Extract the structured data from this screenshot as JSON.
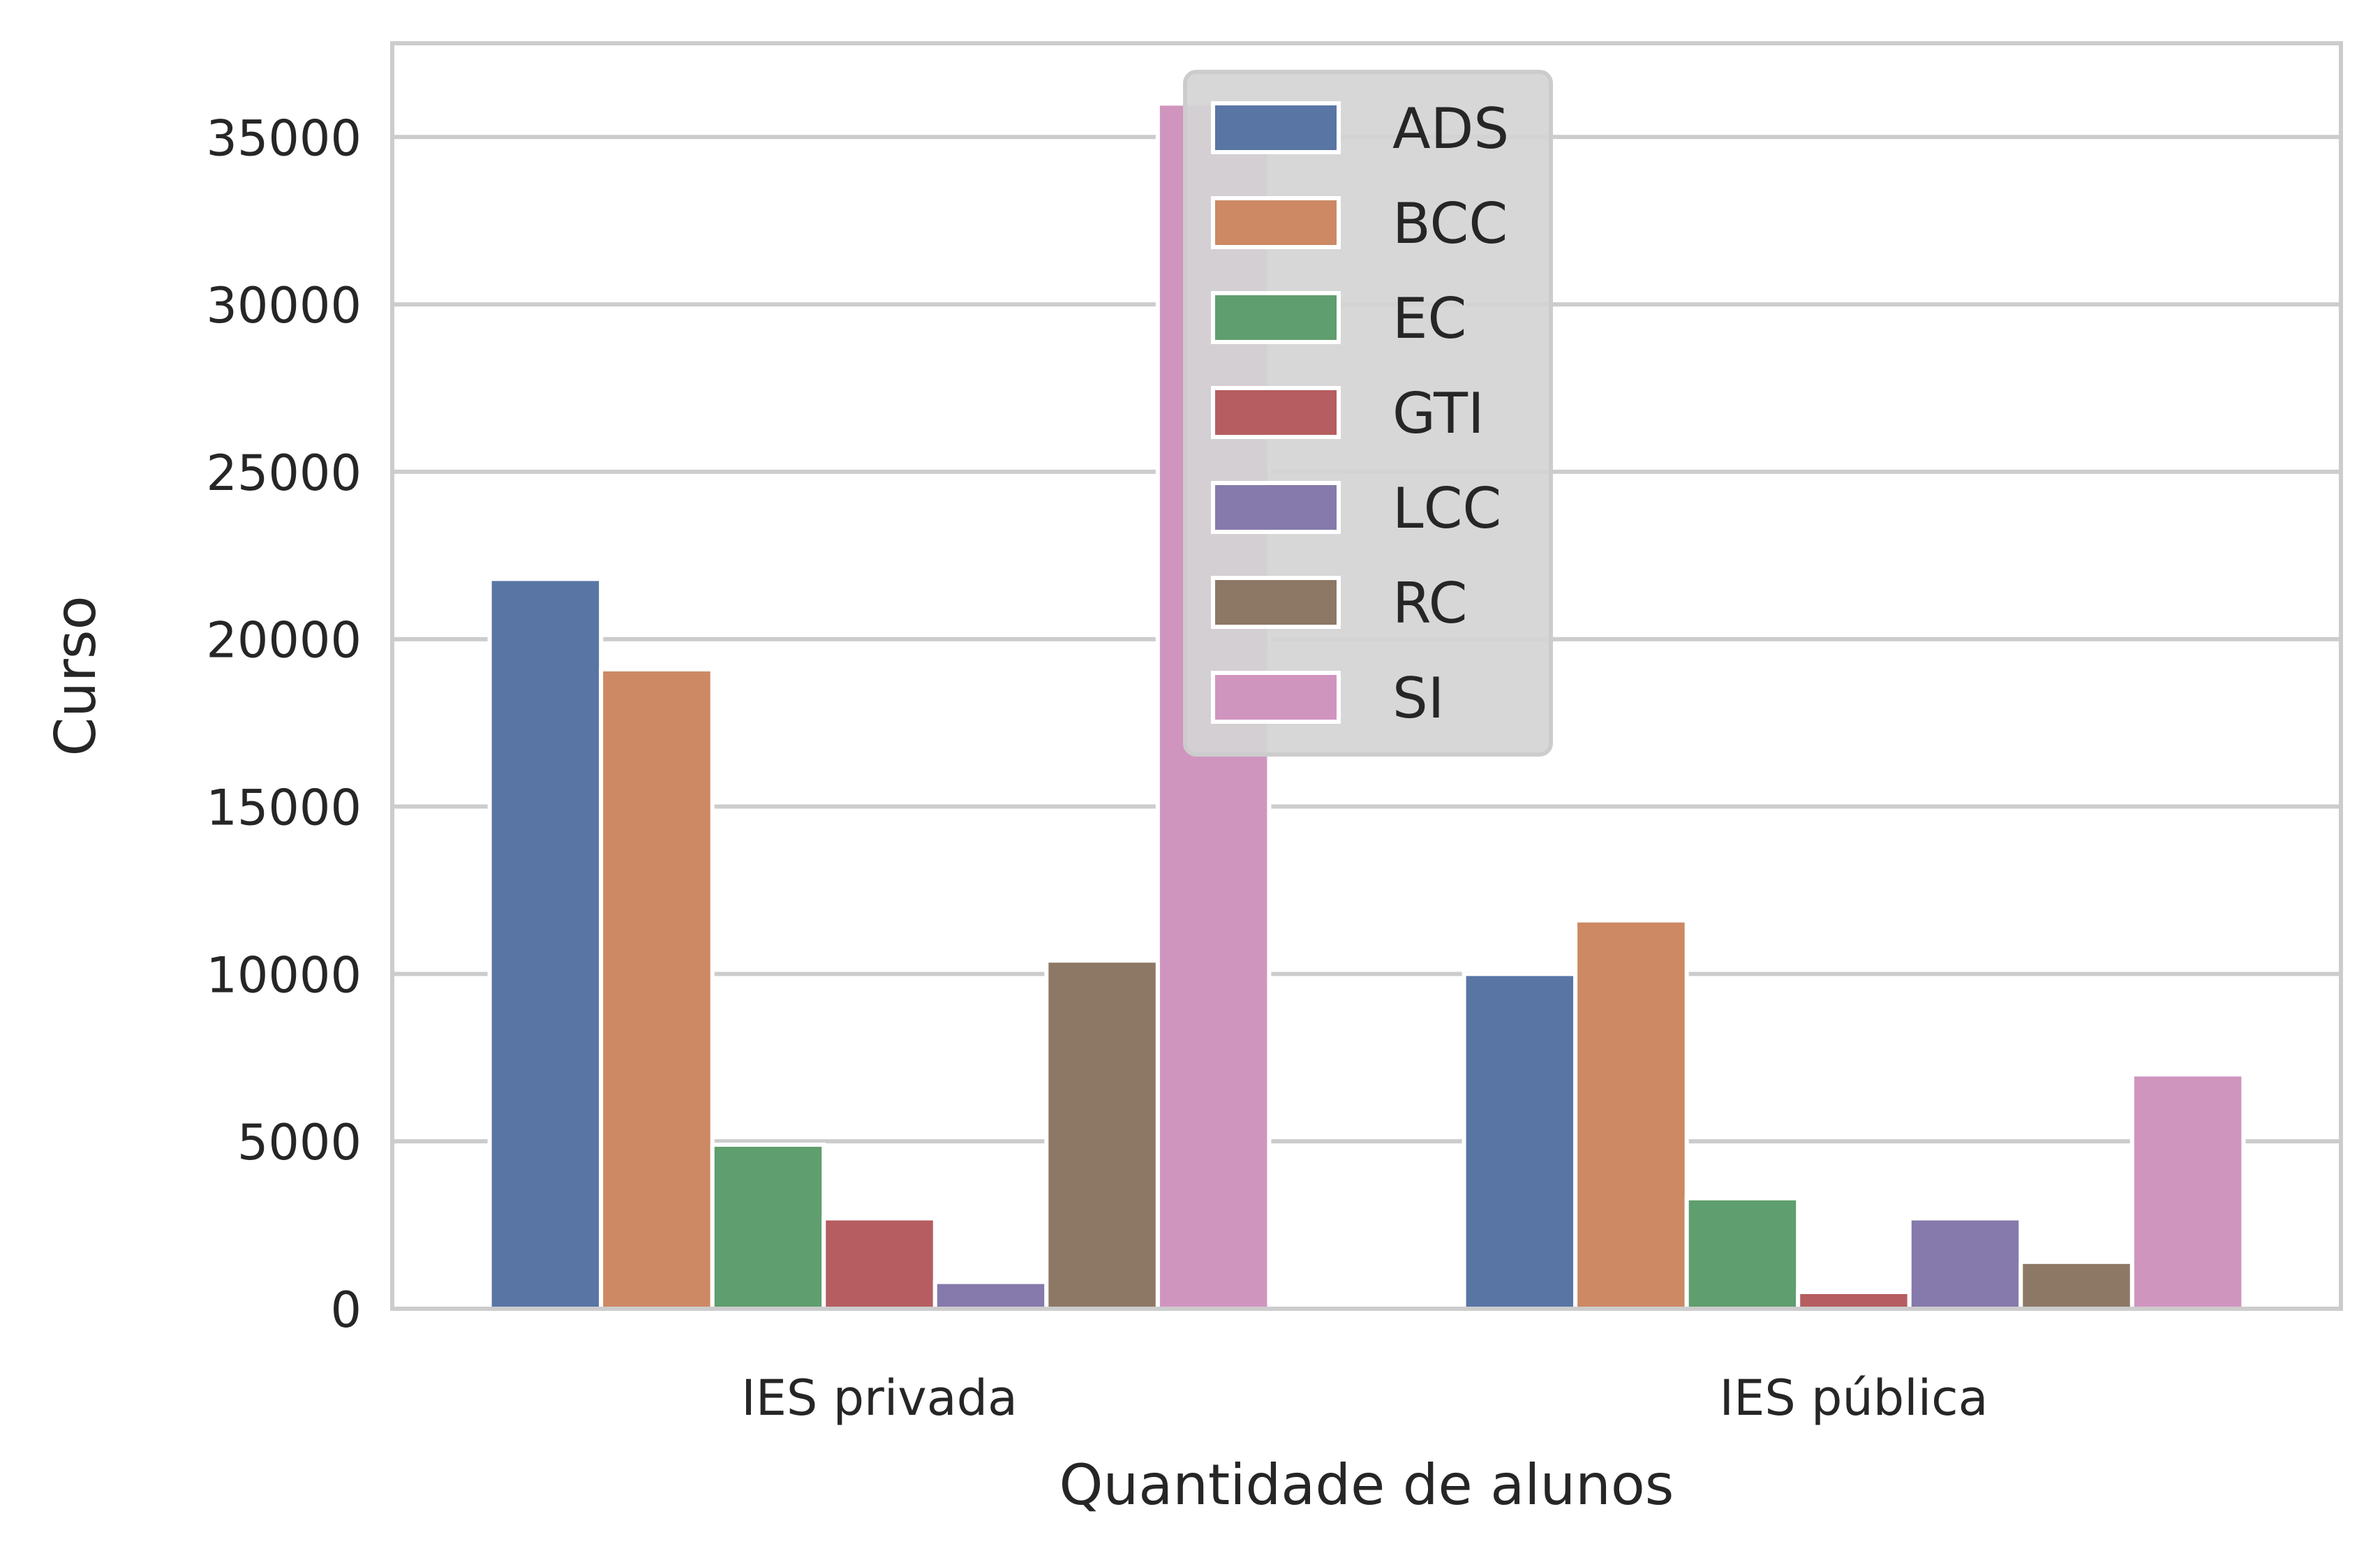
{
  "chart_data": {
    "type": "bar",
    "categories": [
      "IES privada",
      "IES pública"
    ],
    "series": [
      {
        "name": "ADS",
        "color": "#5975a4",
        "values": [
          21800,
          10000
        ]
      },
      {
        "name": "BCC",
        "color": "#cc8963",
        "values": [
          19100,
          11600
        ]
      },
      {
        "name": "EC",
        "color": "#5f9e6e",
        "values": [
          4900,
          3300
        ]
      },
      {
        "name": "GTI",
        "color": "#b55d60",
        "values": [
          2700,
          500
        ]
      },
      {
        "name": "LCC",
        "color": "#857aab",
        "values": [
          800,
          2700
        ]
      },
      {
        "name": "RC",
        "color": "#8d7866",
        "values": [
          10400,
          1400
        ]
      },
      {
        "name": "SI",
        "color": "#d095bf",
        "values": [
          36000,
          7000
        ]
      }
    ],
    "xlabel": "Quantidade de alunos",
    "ylabel": "Curso",
    "ylim": [
      0,
      37800
    ],
    "yticks": [
      "0",
      "5000",
      "10000",
      "15000",
      "20000",
      "25000",
      "30000",
      "35000"
    ],
    "grid": true,
    "legend_position": "upper-center"
  }
}
